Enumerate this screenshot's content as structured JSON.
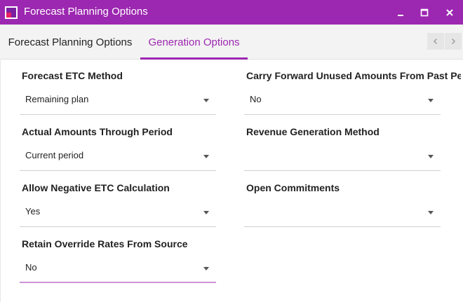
{
  "window": {
    "title": "Forecast Planning Options",
    "minimize_icon": "minimize-icon",
    "maximize_icon": "maximize-icon",
    "close_icon": "close-icon",
    "accent": "#9c27b0"
  },
  "tabs": [
    {
      "label": "Forecast Planning Options",
      "active": false
    },
    {
      "label": "Generation Options",
      "active": true
    }
  ],
  "fields": {
    "forecast_etc_method": {
      "label": "Forecast ETC Method",
      "value": "Remaining plan"
    },
    "actual_amounts_through_period": {
      "label": "Actual Amounts Through Period",
      "value": "Current period"
    },
    "allow_negative_etc": {
      "label": "Allow Negative ETC Calculation",
      "value": "Yes"
    },
    "retain_override_rates": {
      "label": "Retain Override Rates From Source",
      "value": "No"
    },
    "carry_forward_unused": {
      "label": "Carry Forward Unused Amounts From Past Periods",
      "value": "No"
    },
    "revenue_generation_method": {
      "label": "Revenue Generation Method",
      "value": ""
    },
    "open_commitments": {
      "label": "Open Commitments",
      "value": ""
    }
  }
}
